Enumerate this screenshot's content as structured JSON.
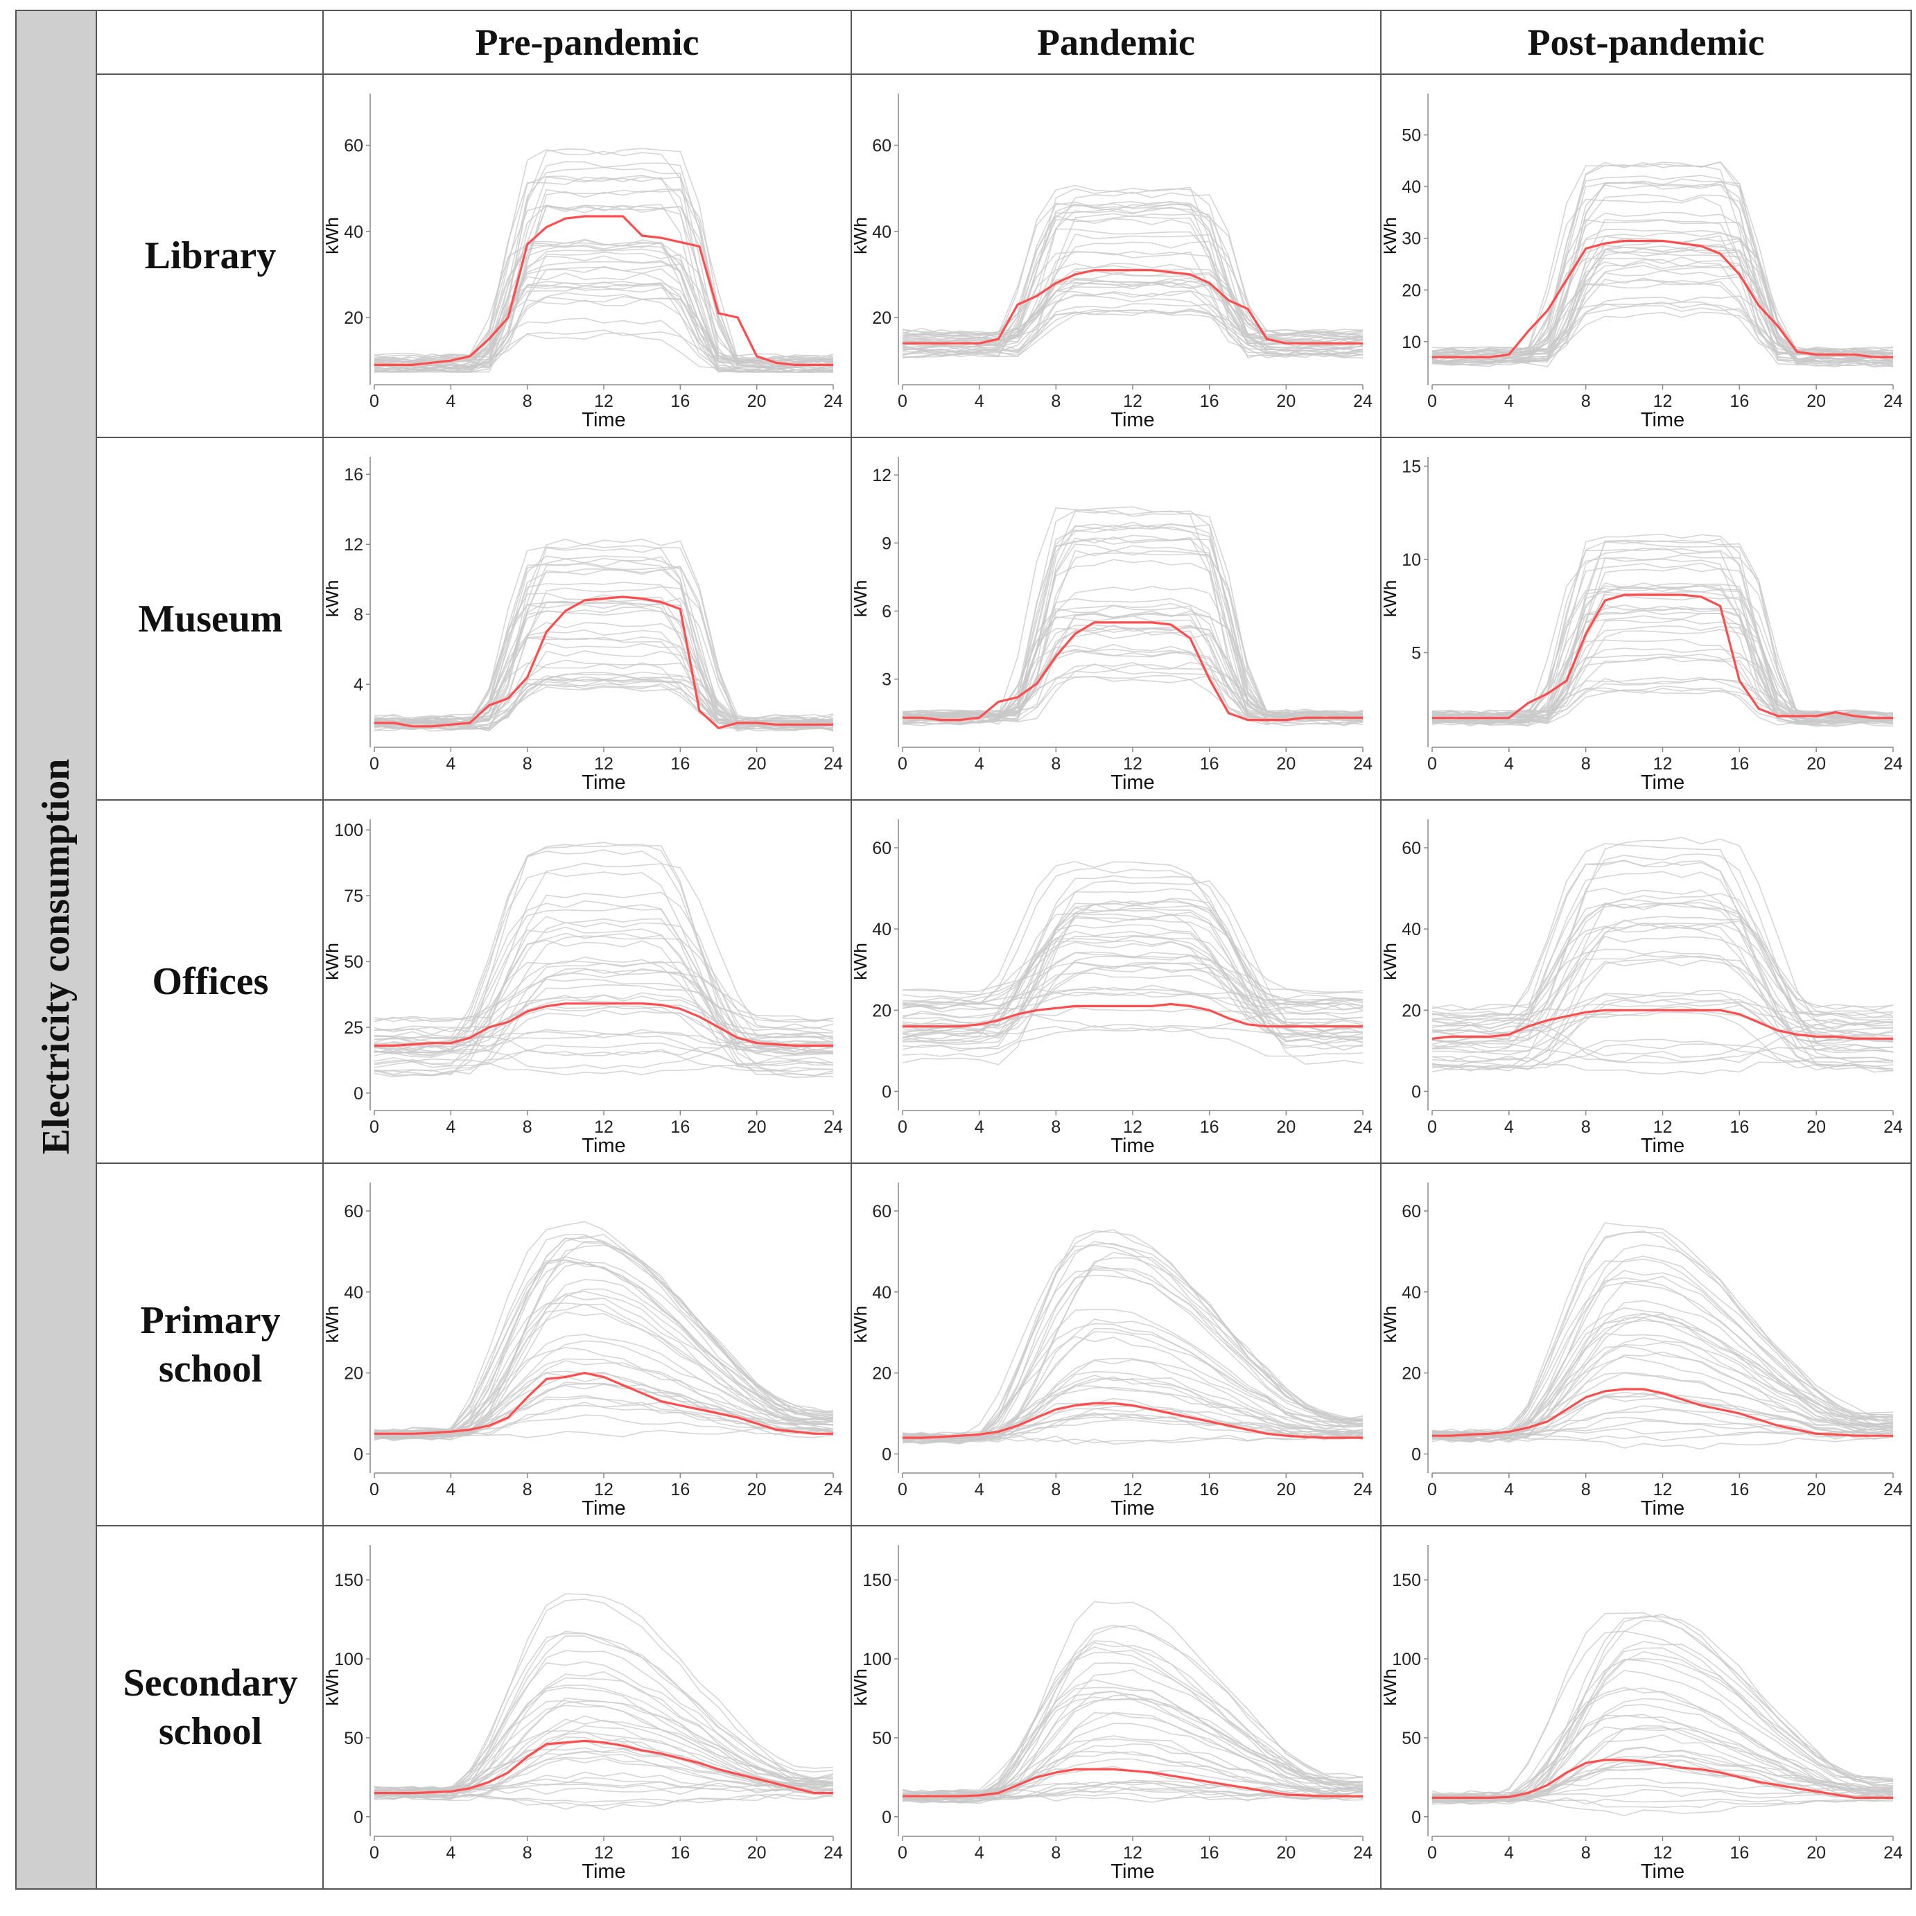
{
  "figure": {
    "side_label": "Electricity consumption",
    "columns": [
      "Pre-pandemic",
      "Pandemic",
      "Post-pandemic"
    ],
    "rows": [
      {
        "line1": "Library",
        "line2": ""
      },
      {
        "line1": "Museum",
        "line2": ""
      },
      {
        "line1": "Offices",
        "line2": ""
      },
      {
        "line1": "Primary",
        "line2": "school"
      },
      {
        "line1": "Secondary",
        "line2": "school"
      }
    ]
  },
  "colors": {
    "mean_line": "#ff4d4d",
    "individual_lines": "#c8c8c8",
    "frame": "#555555",
    "side_band": "#cfcfcf"
  },
  "chart_data": [
    {
      "type": "line",
      "row": "Library",
      "period": "Pre-pandemic",
      "xlabel": "Time",
      "ylabel": "kWh",
      "xlim": [
        0,
        24
      ],
      "ylim": [
        6,
        72
      ],
      "xticks": [
        0,
        4,
        8,
        12,
        16,
        20,
        24
      ],
      "yticks": [
        20,
        40,
        60
      ],
      "profile": "rect",
      "env_max": 60,
      "mean": {
        "x": [
          0,
          1,
          2,
          3,
          4,
          5,
          6,
          7,
          8,
          9,
          10,
          11,
          12,
          13,
          14,
          15,
          16,
          17,
          18,
          19,
          20,
          21,
          22,
          23,
          24
        ],
        "y": [
          9,
          9,
          9,
          9.5,
          10,
          11,
          15,
          20,
          37,
          41,
          43,
          43.5,
          43.5,
          43.5,
          39,
          38.5,
          37.5,
          36.5,
          21,
          20,
          11,
          9.5,
          9,
          9,
          9
        ]
      }
    },
    {
      "type": "line",
      "row": "Library",
      "period": "Pandemic",
      "xlabel": "Time",
      "ylabel": "kWh",
      "xlim": [
        0,
        24
      ],
      "ylim": [
        6,
        72
      ],
      "xticks": [
        0,
        4,
        8,
        12,
        16,
        20,
        24
      ],
      "yticks": [
        20,
        40,
        60
      ],
      "profile": "rect",
      "env_max": 52,
      "mean": {
        "x": [
          0,
          1,
          2,
          3,
          4,
          5,
          6,
          7,
          8,
          9,
          10,
          11,
          12,
          13,
          14,
          15,
          16,
          17,
          18,
          19,
          20,
          21,
          22,
          23,
          24
        ],
        "y": [
          14,
          14,
          14,
          14,
          14,
          15,
          23,
          25,
          28,
          30,
          31,
          31,
          31,
          31,
          30.5,
          30,
          28,
          24,
          22,
          15,
          14,
          14,
          14,
          14,
          14
        ]
      }
    },
    {
      "type": "line",
      "row": "Library",
      "period": "Post-pandemic",
      "xlabel": "Time",
      "ylabel": "kWh",
      "xlim": [
        0,
        24
      ],
      "ylim": [
        3,
        58
      ],
      "xticks": [
        0,
        4,
        8,
        12,
        16,
        20,
        24
      ],
      "yticks": [
        10,
        20,
        30,
        40,
        50
      ],
      "profile": "rect",
      "env_max": 44,
      "mean": {
        "x": [
          0,
          1,
          2,
          3,
          4,
          5,
          6,
          7,
          8,
          9,
          10,
          11,
          12,
          13,
          14,
          15,
          16,
          17,
          18,
          19,
          20,
          21,
          22,
          23,
          24
        ],
        "y": [
          7,
          7,
          7,
          7,
          7.5,
          12,
          16,
          22,
          28,
          29,
          29.5,
          29.5,
          29.5,
          29,
          28.5,
          27,
          23,
          17,
          13,
          8,
          7.5,
          7.5,
          7.5,
          7,
          7
        ]
      }
    },
    {
      "type": "line",
      "row": "Museum",
      "period": "Pre-pandemic",
      "xlabel": "Time",
      "ylabel": "kWh",
      "xlim": [
        0,
        24
      ],
      "ylim": [
        0.8,
        17
      ],
      "xticks": [
        0,
        4,
        8,
        12,
        16,
        20,
        24
      ],
      "yticks": [
        4,
        8,
        12,
        16
      ],
      "profile": "rect",
      "env_max": 12.5,
      "mean": {
        "x": [
          0,
          1,
          2,
          3,
          4,
          5,
          6,
          7,
          8,
          9,
          10,
          11,
          12,
          13,
          14,
          15,
          16,
          17,
          18,
          19,
          20,
          21,
          22,
          23,
          24
        ],
        "y": [
          1.8,
          1.8,
          1.6,
          1.6,
          1.7,
          1.8,
          2.8,
          3.2,
          4.4,
          7,
          8.2,
          8.8,
          8.9,
          9,
          8.9,
          8.7,
          8.3,
          2.5,
          1.5,
          1.8,
          1.8,
          1.7,
          1.7,
          1.7,
          1.7
        ]
      }
    },
    {
      "type": "line",
      "row": "Museum",
      "period": "Pandemic",
      "xlabel": "Time",
      "ylabel": "kWh",
      "xlim": [
        0,
        24
      ],
      "ylim": [
        0.3,
        12.8
      ],
      "xticks": [
        0,
        4,
        8,
        12,
        16,
        20,
        24
      ],
      "yticks": [
        3,
        6,
        9,
        12
      ],
      "profile": "rect",
      "env_max": 10.5,
      "mean": {
        "x": [
          0,
          1,
          2,
          3,
          4,
          5,
          6,
          7,
          8,
          9,
          10,
          11,
          12,
          13,
          14,
          15,
          16,
          17,
          18,
          19,
          20,
          21,
          22,
          23,
          24
        ],
        "y": [
          1.3,
          1.3,
          1.2,
          1.2,
          1.3,
          2,
          2.2,
          2.8,
          4,
          5,
          5.5,
          5.5,
          5.5,
          5.5,
          5.4,
          4.8,
          3,
          1.5,
          1.2,
          1.2,
          1.2,
          1.3,
          1.3,
          1.3,
          1.3
        ]
      }
    },
    {
      "type": "line",
      "row": "Museum",
      "period": "Post-pandemic",
      "xlabel": "Time",
      "ylabel": "kWh",
      "xlim": [
        0,
        24
      ],
      "ylim": [
        0.3,
        15.5
      ],
      "xticks": [
        0,
        4,
        8,
        12,
        16,
        20,
        24
      ],
      "yticks": [
        5,
        10,
        15
      ],
      "profile": "rect",
      "env_max": 11.5,
      "mean": {
        "x": [
          0,
          1,
          2,
          3,
          4,
          5,
          6,
          7,
          8,
          9,
          10,
          11,
          12,
          13,
          14,
          15,
          16,
          17,
          18,
          19,
          20,
          21,
          22,
          23,
          24
        ],
        "y": [
          1.5,
          1.5,
          1.5,
          1.5,
          1.5,
          2.3,
          2.8,
          3.5,
          6,
          7.8,
          8.1,
          8.1,
          8.1,
          8.1,
          8,
          7.5,
          3.5,
          2,
          1.6,
          1.6,
          1.6,
          1.8,
          1.6,
          1.5,
          1.5
        ]
      }
    },
    {
      "type": "line",
      "row": "Offices",
      "period": "Pre-pandemic",
      "xlabel": "Time",
      "ylabel": "kWh",
      "xlim": [
        0,
        24
      ],
      "ylim": [
        -4,
        104
      ],
      "xticks": [
        0,
        4,
        8,
        12,
        16,
        20,
        24
      ],
      "yticks": [
        0,
        25,
        50,
        75,
        100
      ],
      "profile": "offices",
      "env_max": 90,
      "mean": {
        "x": [
          0,
          1,
          2,
          3,
          4,
          5,
          6,
          7,
          8,
          9,
          10,
          11,
          12,
          13,
          14,
          15,
          16,
          17,
          18,
          19,
          20,
          21,
          22,
          23,
          24
        ],
        "y": [
          18,
          18,
          18.5,
          19,
          19,
          21,
          25,
          27,
          31,
          33,
          34,
          34,
          34,
          34,
          34,
          33.5,
          32,
          29,
          25,
          21,
          19,
          18.5,
          18,
          18,
          18
        ]
      }
    },
    {
      "type": "line",
      "row": "Offices",
      "period": "Pandemic",
      "xlabel": "Time",
      "ylabel": "kWh",
      "xlim": [
        0,
        24
      ],
      "ylim": [
        -3,
        67
      ],
      "xticks": [
        0,
        4,
        8,
        12,
        16,
        20,
        24
      ],
      "yticks": [
        0,
        20,
        40,
        60
      ],
      "profile": "offices",
      "env_max": 56,
      "mean": {
        "x": [
          0,
          1,
          2,
          3,
          4,
          5,
          6,
          7,
          8,
          9,
          10,
          11,
          12,
          13,
          14,
          15,
          16,
          17,
          18,
          19,
          20,
          21,
          22,
          23,
          24
        ],
        "y": [
          16,
          16,
          16,
          16,
          16.5,
          17.5,
          19,
          20,
          20.5,
          21,
          21,
          21,
          21,
          21,
          21.5,
          21,
          20,
          18,
          16.5,
          16,
          16,
          16,
          16,
          16,
          16
        ]
      }
    },
    {
      "type": "line",
      "row": "Offices",
      "period": "Post-pandemic",
      "xlabel": "Time",
      "ylabel": "kWh",
      "xlim": [
        0,
        24
      ],
      "ylim": [
        -3,
        67
      ],
      "xticks": [
        0,
        4,
        8,
        12,
        16,
        20,
        24
      ],
      "yticks": [
        0,
        20,
        40,
        60
      ],
      "profile": "offices",
      "env_max": 56,
      "mean": {
        "x": [
          0,
          1,
          2,
          3,
          4,
          5,
          6,
          7,
          8,
          9,
          10,
          11,
          12,
          13,
          14,
          15,
          16,
          17,
          18,
          19,
          20,
          21,
          22,
          23,
          24
        ],
        "y": [
          13,
          13.5,
          13.5,
          13.5,
          14,
          16,
          17.5,
          18.5,
          19.5,
          20,
          20,
          20,
          20,
          20,
          20,
          20,
          19,
          17,
          15,
          14,
          13.5,
          13.5,
          13,
          13,
          13
        ]
      }
    },
    {
      "type": "line",
      "row": "Primary school",
      "period": "Pre-pandemic",
      "xlabel": "Time",
      "ylabel": "kWh",
      "xlim": [
        0,
        24
      ],
      "ylim": [
        -3,
        67
      ],
      "xticks": [
        0,
        4,
        8,
        12,
        16,
        20,
        24
      ],
      "yticks": [
        0,
        20,
        40,
        60
      ],
      "profile": "school",
      "env_max": 58,
      "mean": {
        "x": [
          0,
          1,
          2,
          3,
          4,
          5,
          6,
          7,
          8,
          9,
          10,
          11,
          12,
          13,
          14,
          15,
          16,
          17,
          18,
          19,
          20,
          21,
          22,
          23,
          24
        ],
        "y": [
          5,
          5,
          5,
          5.2,
          5.5,
          6,
          7,
          9,
          14,
          18.5,
          19,
          20,
          19,
          17,
          15,
          13,
          12,
          11,
          10,
          9,
          7.5,
          6,
          5.5,
          5,
          5
        ]
      }
    },
    {
      "type": "line",
      "row": "Primary school",
      "period": "Pandemic",
      "xlabel": "Time",
      "ylabel": "kWh",
      "xlim": [
        0,
        24
      ],
      "ylim": [
        -3,
        67
      ],
      "xticks": [
        0,
        4,
        8,
        12,
        16,
        20,
        24
      ],
      "yticks": [
        0,
        20,
        40,
        60
      ],
      "profile": "school",
      "env_max": 56,
      "mean": {
        "x": [
          0,
          1,
          2,
          3,
          4,
          5,
          6,
          7,
          8,
          9,
          10,
          11,
          12,
          13,
          14,
          15,
          16,
          17,
          18,
          19,
          20,
          21,
          22,
          23,
          24
        ],
        "y": [
          4,
          4,
          4.2,
          4.5,
          4.8,
          5.5,
          7,
          9,
          11,
          12,
          12.5,
          12.5,
          12,
          11,
          10,
          9,
          8,
          7,
          6,
          5,
          4.5,
          4.2,
          4,
          4,
          4
        ]
      }
    },
    {
      "type": "line",
      "row": "Primary school",
      "period": "Post-pandemic",
      "xlabel": "Time",
      "ylabel": "kWh",
      "xlim": [
        0,
        24
      ],
      "ylim": [
        -3,
        67
      ],
      "xticks": [
        0,
        4,
        8,
        12,
        16,
        20,
        24
      ],
      "yticks": [
        0,
        20,
        40,
        60
      ],
      "profile": "school",
      "env_max": 58,
      "mean": {
        "x": [
          0,
          1,
          2,
          3,
          4,
          5,
          6,
          7,
          8,
          9,
          10,
          11,
          12,
          13,
          14,
          15,
          16,
          17,
          18,
          19,
          20,
          21,
          22,
          23,
          24
        ],
        "y": [
          4.5,
          4.5,
          4.8,
          5,
          5.5,
          6.5,
          8,
          11,
          14,
          15.5,
          16,
          16,
          15,
          13.5,
          12,
          11,
          10,
          8.5,
          7,
          6,
          5,
          4.8,
          4.5,
          4.5,
          4.5
        ]
      }
    },
    {
      "type": "line",
      "row": "Secondary school",
      "period": "Pre-pandemic",
      "xlabel": "Time",
      "ylabel": "kWh",
      "xlim": [
        0,
        24
      ],
      "ylim": [
        -8,
        172
      ],
      "xticks": [
        0,
        4,
        8,
        12,
        16,
        20,
        24
      ],
      "yticks": [
        0,
        50,
        100,
        150
      ],
      "profile": "school",
      "env_max": 140,
      "mean": {
        "x": [
          0,
          1,
          2,
          3,
          4,
          5,
          6,
          7,
          8,
          9,
          10,
          11,
          12,
          13,
          14,
          15,
          16,
          17,
          18,
          19,
          20,
          21,
          22,
          23,
          24
        ],
        "y": [
          15,
          15,
          15,
          15.5,
          16,
          18,
          22,
          28,
          38,
          46,
          47,
          48,
          47,
          45,
          42,
          40,
          37,
          34,
          30,
          27,
          24,
          21,
          18,
          15,
          15
        ]
      }
    },
    {
      "type": "line",
      "row": "Secondary school",
      "period": "Pandemic",
      "xlabel": "Time",
      "ylabel": "kWh",
      "xlim": [
        0,
        24
      ],
      "ylim": [
        -8,
        172
      ],
      "xticks": [
        0,
        4,
        8,
        12,
        16,
        20,
        24
      ],
      "yticks": [
        0,
        50,
        100,
        150
      ],
      "profile": "school",
      "env_max": 135,
      "mean": {
        "x": [
          0,
          1,
          2,
          3,
          4,
          5,
          6,
          7,
          8,
          9,
          10,
          11,
          12,
          13,
          14,
          15,
          16,
          17,
          18,
          19,
          20,
          21,
          22,
          23,
          24
        ],
        "y": [
          13,
          13,
          13,
          13,
          13.5,
          15,
          20,
          25,
          28,
          30,
          30,
          30,
          29,
          28,
          26,
          24,
          22,
          20,
          18,
          16,
          14,
          13.5,
          13,
          13,
          13
        ]
      }
    },
    {
      "type": "line",
      "row": "Secondary school",
      "period": "Post-pandemic",
      "xlabel": "Time",
      "ylabel": "kWh",
      "xlim": [
        0,
        24
      ],
      "ylim": [
        -8,
        172
      ],
      "xticks": [
        0,
        4,
        8,
        12,
        16,
        20,
        24
      ],
      "yticks": [
        0,
        50,
        100,
        150
      ],
      "profile": "school",
      "env_max": 140,
      "mean": {
        "x": [
          0,
          1,
          2,
          3,
          4,
          5,
          6,
          7,
          8,
          9,
          10,
          11,
          12,
          13,
          14,
          15,
          16,
          17,
          18,
          19,
          20,
          21,
          22,
          23,
          24
        ],
        "y": [
          12,
          12,
          12,
          12,
          12.5,
          15,
          20,
          28,
          34,
          36,
          36,
          35,
          33,
          31,
          30,
          28,
          25,
          22,
          20,
          18,
          16,
          14,
          12,
          12,
          12
        ]
      }
    }
  ]
}
